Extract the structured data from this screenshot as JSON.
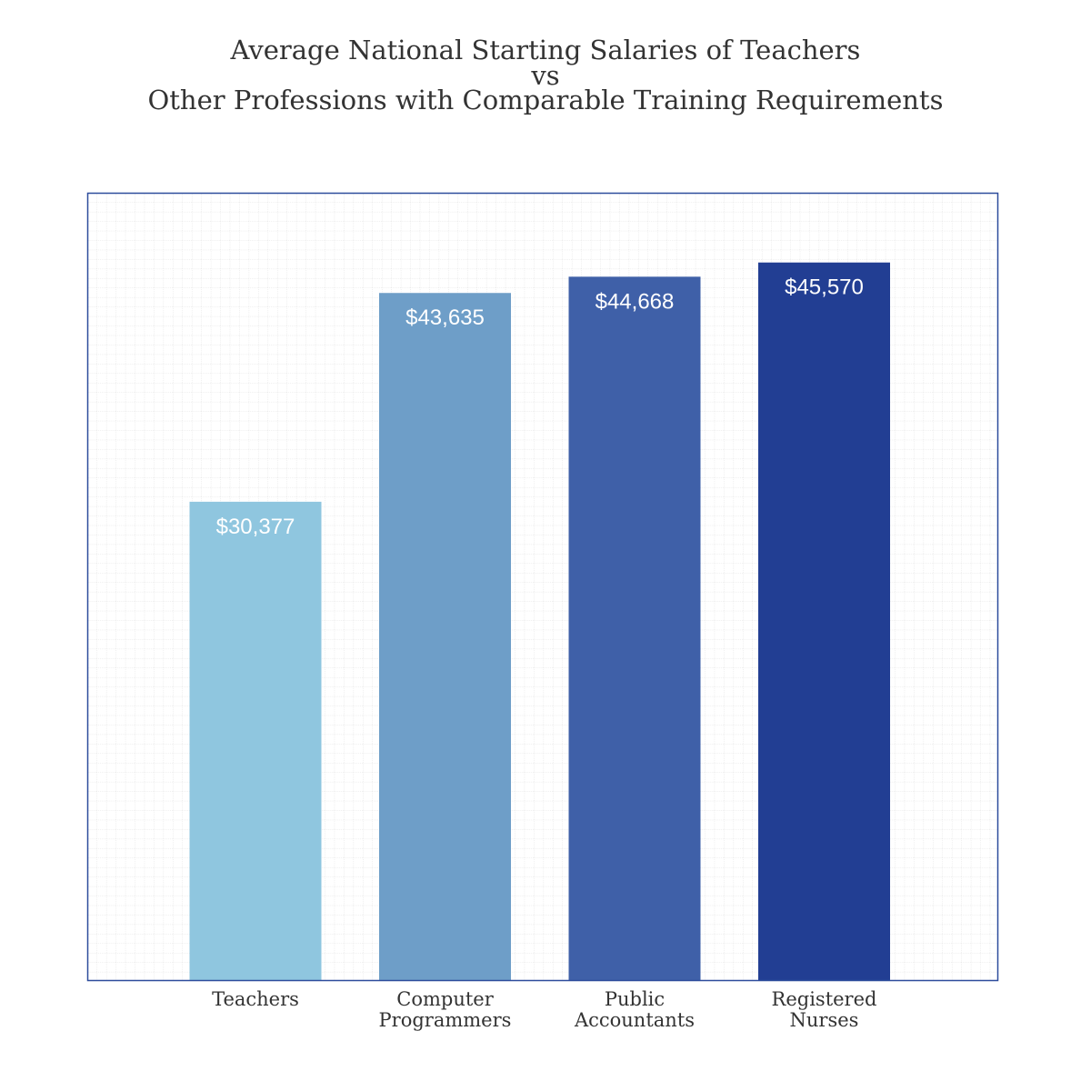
{
  "chart_data": {
    "type": "bar",
    "title_lines": [
      "Average National Starting Salaries of Teachers",
      "vs",
      "Other Professions with Comparable Training Requirements"
    ],
    "categories": [
      "Teachers",
      "Computer Programmers",
      "Public Accountants",
      "Registered Nurses"
    ],
    "values": [
      30377,
      43635,
      44668,
      45570
    ],
    "data_labels": [
      "$30,377",
      "$43,635",
      "$44,668",
      "$45,570"
    ],
    "ylim": [
      0,
      50000
    ],
    "grid": true,
    "legend": false,
    "colors": [
      "#8fc6df",
      "#6e9ec8",
      "#3f60a8",
      "#223e93"
    ],
    "label_color": "#ffffff",
    "frame_color": "#2d4c9c",
    "text_color": "#333333",
    "grid_color": "#d8d8d8"
  }
}
